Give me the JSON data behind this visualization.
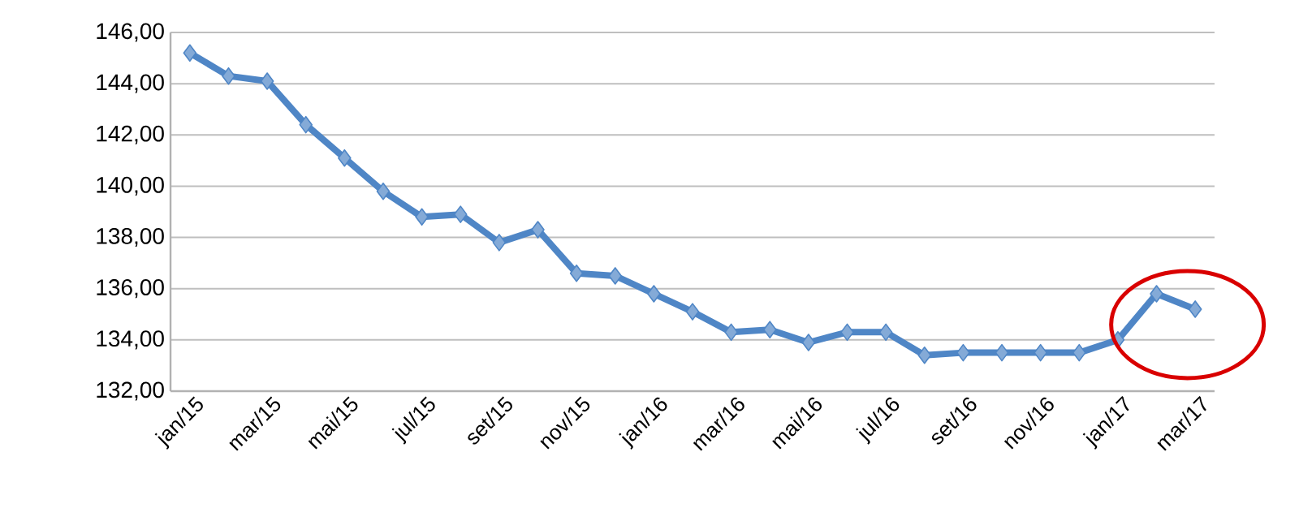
{
  "chart_data": {
    "type": "line",
    "categories": [
      "jan/15",
      null,
      "mar/15",
      null,
      "mai/15",
      null,
      "jul/15",
      null,
      "set/15",
      null,
      "nov/15",
      null,
      "jan/16",
      null,
      "mar/16",
      null,
      "mai/16",
      null,
      "jul/16",
      null,
      "set/16",
      null,
      "nov/16",
      null,
      "jan/17",
      null,
      "mar/17"
    ],
    "series": [
      {
        "color": "#4f86c6",
        "values": [
          145.2,
          144.3,
          144.1,
          142.4,
          141.1,
          139.8,
          138.8,
          138.9,
          137.8,
          138.3,
          136.6,
          136.5,
          135.8,
          135.1,
          134.3,
          134.4,
          133.9,
          134.3,
          134.3,
          133.4,
          133.5,
          133.5,
          133.5,
          133.5,
          134.0,
          135.8,
          135.2
        ]
      }
    ],
    "ylim": [
      132,
      146
    ],
    "yticks": [
      {
        "value": 132,
        "label": "132,00"
      },
      {
        "value": 134,
        "label": "134,00"
      },
      {
        "value": 136,
        "label": "136,00"
      },
      {
        "value": 138,
        "label": "138,00"
      },
      {
        "value": 140,
        "label": "140,00"
      },
      {
        "value": 142,
        "label": "142,00"
      },
      {
        "value": 144,
        "label": "144,00"
      },
      {
        "value": 146,
        "label": "146,00"
      }
    ],
    "grid": "y",
    "marker": "diamond",
    "line_style": "solid"
  }
}
